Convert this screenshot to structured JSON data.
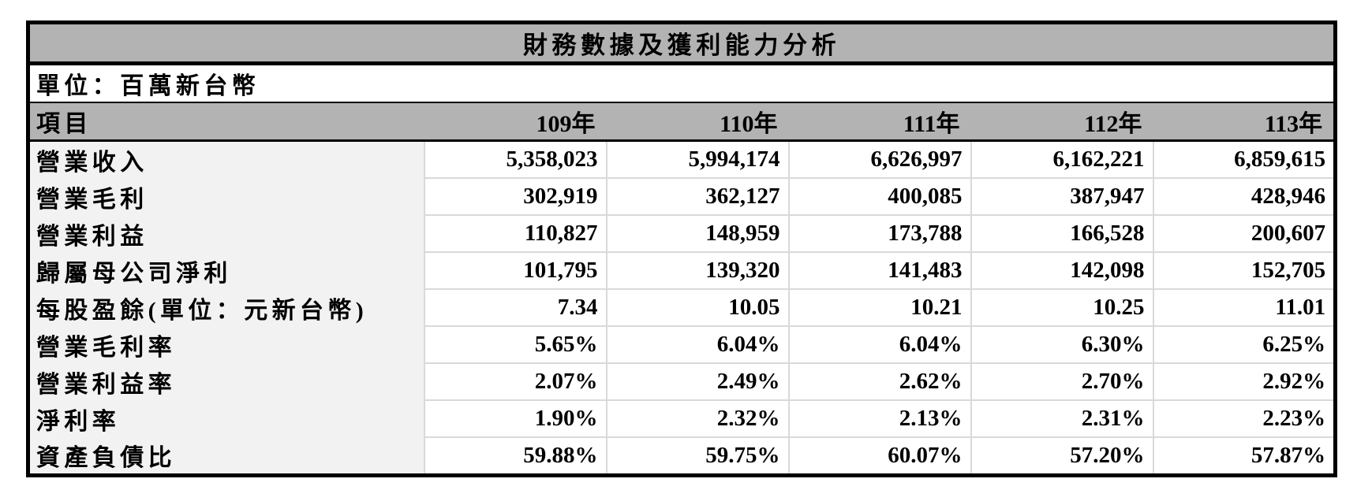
{
  "chart_data": {
    "type": "table",
    "title": "財務數據及獲利能力分析",
    "unit_note": "單位：百萬新台幣",
    "columns": [
      "項目",
      "109年",
      "110年",
      "111年",
      "112年",
      "113年"
    ],
    "rows": [
      {
        "label": "營業收入",
        "values": [
          "5,358,023",
          "5,994,174",
          "6,626,997",
          "6,162,221",
          "6,859,615"
        ]
      },
      {
        "label": "營業毛利",
        "values": [
          "302,919",
          "362,127",
          "400,085",
          "387,947",
          "428,946"
        ]
      },
      {
        "label": "營業利益",
        "values": [
          "110,827",
          "148,959",
          "173,788",
          "166,528",
          "200,607"
        ]
      },
      {
        "label": "歸屬母公司淨利",
        "values": [
          "101,795",
          "139,320",
          "141,483",
          "142,098",
          "152,705"
        ]
      },
      {
        "label": "每股盈餘(單位：元新台幣)",
        "values": [
          "7.34",
          "10.05",
          "10.21",
          "10.25",
          "11.01"
        ]
      },
      {
        "label": "營業毛利率",
        "values": [
          "5.65%",
          "6.04%",
          "6.04%",
          "6.30%",
          "6.25%"
        ]
      },
      {
        "label": "營業利益率",
        "values": [
          "2.07%",
          "2.49%",
          "2.62%",
          "2.70%",
          "2.92%"
        ]
      },
      {
        "label": "淨利率",
        "values": [
          "1.90%",
          "2.32%",
          "2.13%",
          "2.31%",
          "2.23%"
        ]
      },
      {
        "label": "資產負債比",
        "values": [
          "59.88%",
          "59.75%",
          "60.07%",
          "57.20%",
          "57.87%"
        ]
      }
    ],
    "layout": {
      "grid": true,
      "header_position": "top",
      "label_column_position": "left"
    }
  },
  "colors": {
    "header_bg": "#b3b3b3",
    "label_column_bg": "#f2f2f2",
    "grid_line": "#d9d9d9",
    "outer_border": "#000000",
    "cell_bg": "#ffffff"
  }
}
